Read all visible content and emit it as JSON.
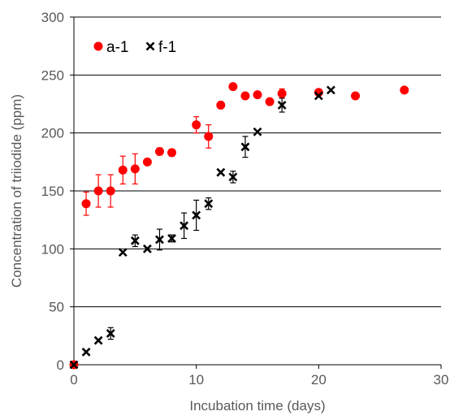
{
  "chart_data": {
    "type": "scatter",
    "xlabel": "Incubation time (days)",
    "ylabel": "Concentration of triiodide (ppm)",
    "xlim": [
      0,
      30
    ],
    "ylim": [
      0,
      300
    ],
    "xticks": [
      0,
      10,
      20,
      30
    ],
    "yticks": [
      0,
      50,
      100,
      150,
      200,
      250,
      300
    ],
    "grid": "horizontal",
    "legend_position": "top-left",
    "series": [
      {
        "name": "a-1",
        "marker": "circle",
        "color": "#ff0000",
        "points": [
          {
            "x": 0,
            "y": 0,
            "err": 0
          },
          {
            "x": 1,
            "y": 139,
            "err": 10
          },
          {
            "x": 2,
            "y": 150,
            "err": 14
          },
          {
            "x": 3,
            "y": 150,
            "err": 14
          },
          {
            "x": 4,
            "y": 168,
            "err": 12
          },
          {
            "x": 5,
            "y": 169,
            "err": 13
          },
          {
            "x": 6,
            "y": 175,
            "err": 0
          },
          {
            "x": 7,
            "y": 184,
            "err": 3
          },
          {
            "x": 8,
            "y": 183,
            "err": 3
          },
          {
            "x": 10,
            "y": 207,
            "err": 7
          },
          {
            "x": 11,
            "y": 197,
            "err": 10
          },
          {
            "x": 12,
            "y": 224,
            "err": 0
          },
          {
            "x": 13,
            "y": 240,
            "err": 0
          },
          {
            "x": 14,
            "y": 232,
            "err": 0
          },
          {
            "x": 15,
            "y": 233,
            "err": 0
          },
          {
            "x": 16,
            "y": 227,
            "err": 0
          },
          {
            "x": 17,
            "y": 234,
            "err": 4
          },
          {
            "x": 20,
            "y": 235,
            "err": 0
          },
          {
            "x": 23,
            "y": 232,
            "err": 0
          },
          {
            "x": 27,
            "y": 237,
            "err": 0
          }
        ]
      },
      {
        "name": "f-1",
        "marker": "x",
        "color": "#000000",
        "points": [
          {
            "x": 0,
            "y": 0,
            "err": 0
          },
          {
            "x": 1,
            "y": 11,
            "err": 0
          },
          {
            "x": 2,
            "y": 21,
            "err": 0
          },
          {
            "x": 3,
            "y": 27,
            "err": 5
          },
          {
            "x": 4,
            "y": 97,
            "err": 0
          },
          {
            "x": 5,
            "y": 107,
            "err": 5
          },
          {
            "x": 6,
            "y": 100,
            "err": 0
          },
          {
            "x": 7,
            "y": 108,
            "err": 9
          },
          {
            "x": 8,
            "y": 109,
            "err": 3
          },
          {
            "x": 9,
            "y": 120,
            "err": 11
          },
          {
            "x": 10,
            "y": 129,
            "err": 13
          },
          {
            "x": 11,
            "y": 139,
            "err": 5
          },
          {
            "x": 12,
            "y": 166,
            "err": 0
          },
          {
            "x": 13,
            "y": 162,
            "err": 5
          },
          {
            "x": 14,
            "y": 188,
            "err": 9
          },
          {
            "x": 15,
            "y": 201,
            "err": 0
          },
          {
            "x": 17,
            "y": 224,
            "err": 6
          },
          {
            "x": 20,
            "y": 232,
            "err": 0
          },
          {
            "x": 21,
            "y": 237,
            "err": 0
          }
        ]
      }
    ]
  }
}
